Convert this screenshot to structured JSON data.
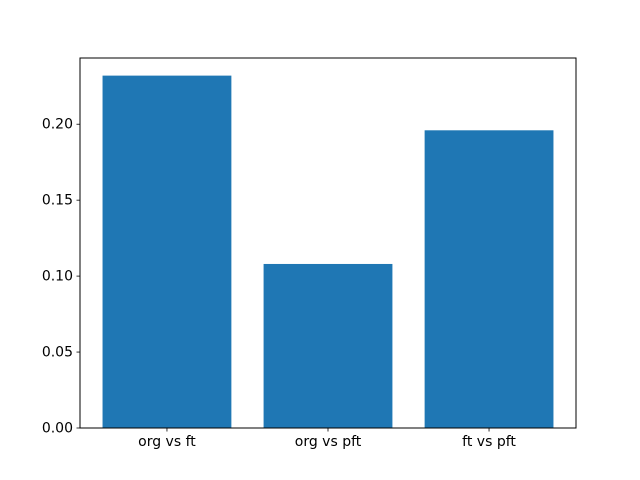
{
  "chart_data": {
    "type": "bar",
    "categories": [
      "org vs ft",
      "org vs pft",
      "ft vs pft"
    ],
    "values": [
      0.232,
      0.108,
      0.196
    ],
    "title": "",
    "xlabel": "",
    "ylabel": "",
    "ylim": [
      0,
      0.2436
    ],
    "yticks": [
      0,
      0.05,
      0.1,
      0.15,
      0.2
    ],
    "ytick_labels": [
      "0.00",
      "0.05",
      "0.10",
      "0.15",
      "0.20"
    ],
    "bar_color": "#1f77b4",
    "background_color": "#ffffff",
    "axes_color": "#000000",
    "text_color": "#000000",
    "grid": false,
    "legend": null,
    "bar_width_fraction": 0.8
  }
}
